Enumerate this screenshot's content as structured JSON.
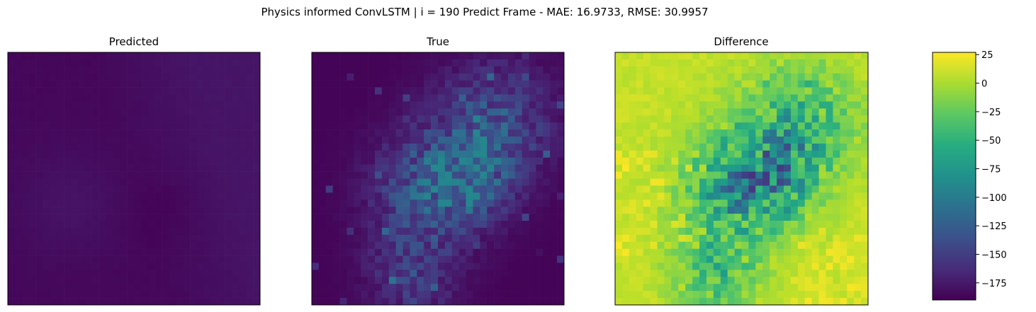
{
  "figure": {
    "suptitle": "Physics informed ConvLSTM | i = 190 Predict Frame - MAE: 16.9733, RMSE: 30.9957"
  },
  "chart_data": [
    {
      "type": "heatmap",
      "title": "Predicted",
      "xlabel": "",
      "ylabel": "",
      "axes_ticks": "hidden",
      "grid_size": [
        36,
        36
      ],
      "colormap": "viridis",
      "value_range_approx": [
        -190,
        -170
      ],
      "pattern": "smooth, dark purple; slightly lighter band across upper-right and a lighter lobe around middle-left; darker patch near the center"
    },
    {
      "type": "heatmap",
      "title": "True",
      "xlabel": "",
      "ylabel": "",
      "axes_ticks": "hidden",
      "grid_size": [
        36,
        36
      ],
      "colormap": "viridis",
      "value_range_approx": [
        -190,
        -90
      ],
      "pattern": "mostly dark purple on the left; scattered blue/teal/green pixels in a diagonal band from top-right to lower-middle"
    },
    {
      "type": "heatmap",
      "title": "Difference",
      "xlabel": "",
      "ylabel": "",
      "axes_ticks": "hidden",
      "grid_size": [
        36,
        36
      ],
      "colormap": "viridis",
      "value_range_approx": [
        -190,
        25
      ],
      "pattern": "mostly yellow-green with a diagonal band of teal/blue/purple pixels from top-right through center; bright yellow patches left-center and lower-right"
    },
    {
      "type": "colorbar",
      "colormap": "viridis",
      "vmin": -190,
      "vmax": 27,
      "ticks": [
        25,
        0,
        -25,
        -50,
        -75,
        -100,
        -125,
        -150,
        -175
      ],
      "tick_labels": [
        "25",
        "0",
        "−25",
        "−50",
        "−75",
        "−100",
        "−125",
        "−150",
        "−175"
      ]
    }
  ]
}
